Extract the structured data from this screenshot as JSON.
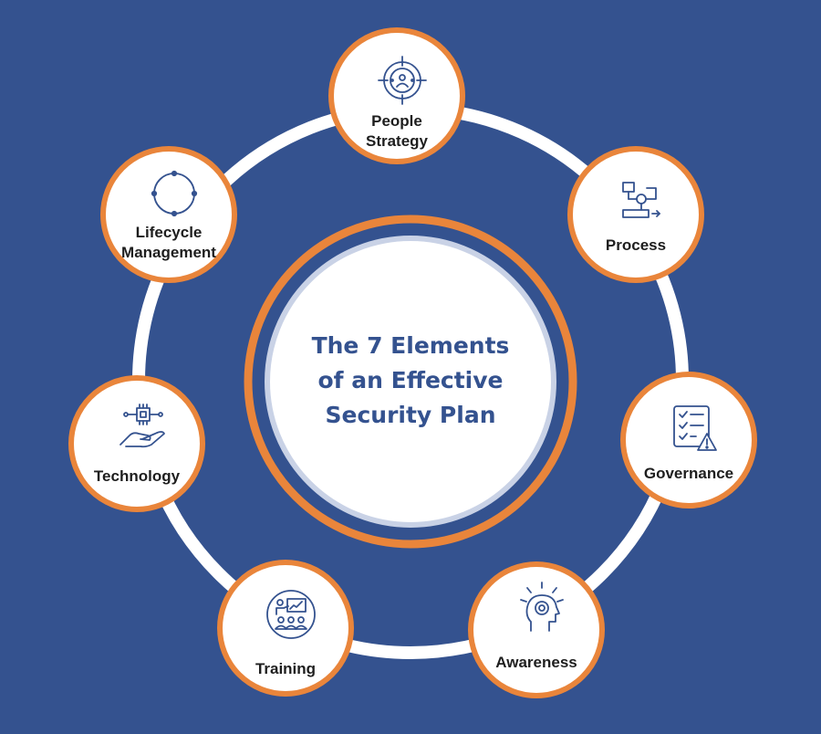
{
  "title": {
    "line1": "The 7 Elements",
    "line2": "of an Effective",
    "line3": "Security Plan"
  },
  "elements": [
    {
      "label_line1": "People",
      "label_line2": "Strategy",
      "icon": "target-person-icon"
    },
    {
      "label_line1": "Process",
      "label_line2": "",
      "icon": "process-flow-icon"
    },
    {
      "label_line1": "Governance",
      "label_line2": "",
      "icon": "checklist-warning-icon"
    },
    {
      "label_line1": "Awareness",
      "label_line2": "",
      "icon": "head-lightbulb-icon"
    },
    {
      "label_line1": "Training",
      "label_line2": "",
      "icon": "presentation-audience-icon"
    },
    {
      "label_line1": "Technology",
      "label_line2": "",
      "icon": "hand-chip-icon"
    },
    {
      "label_line1": "Lifecycle",
      "label_line2": "Management",
      "icon": "cycle-arrows-icon"
    }
  ],
  "colors": {
    "background": "#34528f",
    "accent_orange": "#e9853b",
    "ring_white": "#ffffff",
    "inner_border": "#c9d2e6",
    "title_text": "#34528f",
    "icon_stroke": "#34528f"
  }
}
